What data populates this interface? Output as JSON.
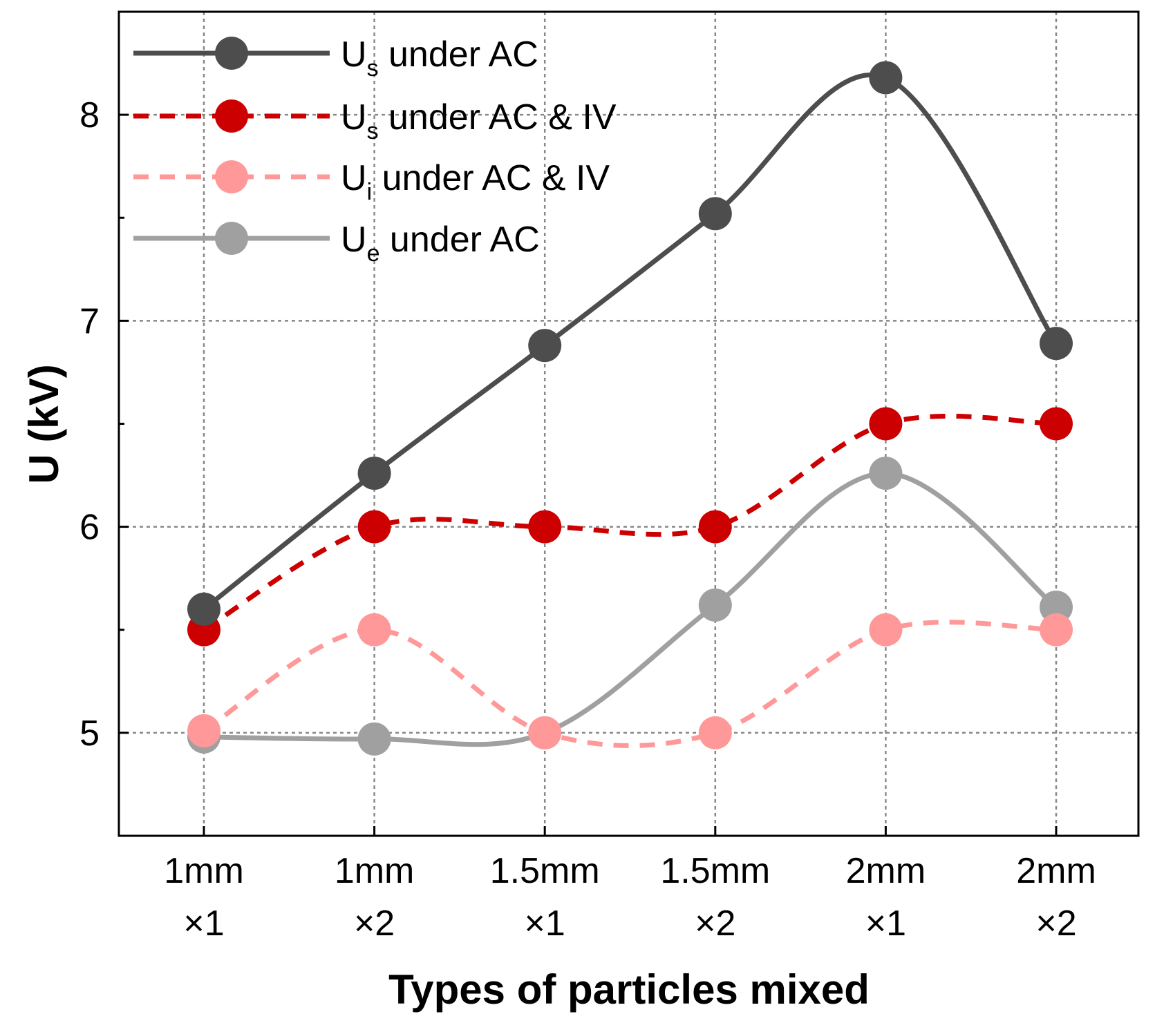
{
  "chart_data": {
    "type": "line",
    "xlabel": "Types of particles mixed",
    "ylabel": "U (kV)",
    "categories": [
      [
        "1mm",
        "×1"
      ],
      [
        "1mm",
        "×2"
      ],
      [
        "1.5mm",
        "×1"
      ],
      [
        "1.5mm",
        "×2"
      ],
      [
        "2mm",
        "×1"
      ],
      [
        "2mm",
        "×2"
      ]
    ],
    "ylim": [
      4.5,
      8.5
    ],
    "yticks": [
      5,
      6,
      7,
      8
    ],
    "grid": true,
    "legend_position": "top-left",
    "series": [
      {
        "name": "U",
        "subscript": "s",
        "suffix": " under AC",
        "color": "#4d4d4d",
        "dashed": false,
        "values": [
          5.6,
          6.26,
          6.88,
          7.52,
          8.18,
          6.89
        ]
      },
      {
        "name": "U",
        "subscript": "s",
        "suffix": " under AC & IV",
        "color": "#cc0000",
        "dashed": true,
        "values": [
          5.5,
          6.0,
          6.0,
          6.0,
          6.5,
          6.5
        ]
      },
      {
        "name": "U",
        "subscript": "i",
        "suffix": " under AC & IV",
        "color": "#ff9999",
        "dashed": true,
        "values": [
          5.01,
          5.5,
          5.0,
          5.0,
          5.5,
          5.5
        ]
      },
      {
        "name": "U",
        "subscript": "e",
        "suffix": " under AC",
        "color": "#a0a0a0",
        "dashed": false,
        "values": [
          4.98,
          4.97,
          5.0,
          5.62,
          6.26,
          5.61
        ]
      }
    ]
  }
}
